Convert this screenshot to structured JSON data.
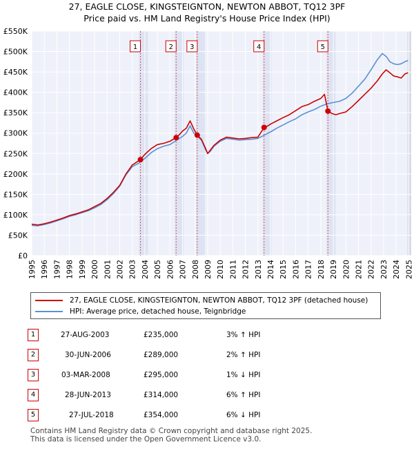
{
  "header": {
    "title": "27, EAGLE CLOSE, KINGSTEIGNTON, NEWTON ABBOT, TQ12 3PF",
    "subtitle": "Price paid vs. HM Land Registry's House Price Index (HPI)"
  },
  "chart_data": {
    "type": "line",
    "title": "27, EAGLE CLOSE, KINGSTEIGNTON, NEWTON ABBOT, TQ12 3PF",
    "subtitle": "Price paid vs. HM Land Registry's House Price Index (HPI)",
    "xlim": [
      1995,
      2025.2
    ],
    "ylim": [
      0,
      550000
    ],
    "yticks": [
      0,
      50000,
      100000,
      150000,
      200000,
      250000,
      300000,
      350000,
      400000,
      450000,
      500000,
      550000
    ],
    "ytick_labels": [
      "£0",
      "£50K",
      "£100K",
      "£150K",
      "£200K",
      "£250K",
      "£300K",
      "£350K",
      "£400K",
      "£450K",
      "£500K",
      "£550K"
    ],
    "xticks": [
      1995,
      1996,
      1997,
      1998,
      1999,
      2000,
      2001,
      2002,
      2003,
      2004,
      2005,
      2006,
      2007,
      2008,
      2009,
      2010,
      2011,
      2012,
      2013,
      2014,
      2015,
      2016,
      2017,
      2018,
      2019,
      2020,
      2021,
      2022,
      2023,
      2024,
      2025
    ],
    "xtick_labels": [
      "1995",
      "1996",
      "1997",
      "1998",
      "1999",
      "2000",
      "2001",
      "2002",
      "2003",
      "2004",
      "2005",
      "2006",
      "2007",
      "2008",
      "2009",
      "2010",
      "2011",
      "2012",
      "2013",
      "2014",
      "2015",
      "2016",
      "2017",
      "2018",
      "2019",
      "2020",
      "2021",
      "2022",
      "2023",
      "2024",
      "2025"
    ],
    "grid": true,
    "shaded_range": [
      2024.9,
      2025.2
    ],
    "series": [
      {
        "name": "27, EAGLE CLOSE, KINGSTEIGNTON, NEWTON ABBOT, TQ12 3PF (detached house)",
        "color": "#cc0000",
        "x": [
          1995.0,
          1995.5,
          1996.0,
          1996.5,
          1997.0,
          1997.5,
          1998.0,
          1998.5,
          1999.0,
          1999.5,
          2000.0,
          2000.5,
          2001.0,
          2001.5,
          2002.0,
          2002.5,
          2003.0,
          2003.5,
          2003.65,
          2004.0,
          2004.5,
          2005.0,
          2005.5,
          2006.0,
          2006.49,
          2006.8,
          2007.0,
          2007.3,
          2007.6,
          2007.9,
          2008.17,
          2008.5,
          2008.8,
          2009.0,
          2009.2,
          2009.5,
          2010.0,
          2010.5,
          2011.0,
          2011.5,
          2012.0,
          2012.5,
          2013.0,
          2013.49,
          2013.8,
          2014.0,
          2014.5,
          2015.0,
          2015.5,
          2016.0,
          2016.5,
          2017.0,
          2017.5,
          2018.0,
          2018.3,
          2018.57,
          2018.9,
          2019.2,
          2019.5,
          2020.0,
          2020.5,
          2021.0,
          2021.5,
          2022.0,
          2022.5,
          2022.9,
          2023.2,
          2023.5,
          2023.8,
          2024.1,
          2024.4,
          2024.7,
          2024.95
        ],
        "values": [
          77000,
          75000,
          78000,
          82000,
          87000,
          92000,
          98000,
          102000,
          107000,
          112000,
          120000,
          128000,
          140000,
          155000,
          172000,
          200000,
          222000,
          232000,
          235000,
          248000,
          262000,
          272000,
          275000,
          280000,
          289000,
          298000,
          305000,
          312000,
          330000,
          310000,
          295000,
          285000,
          265000,
          250000,
          258000,
          270000,
          283000,
          290000,
          288000,
          286000,
          287000,
          289000,
          290000,
          314000,
          318000,
          322000,
          330000,
          338000,
          345000,
          355000,
          365000,
          370000,
          378000,
          385000,
          395000,
          354000,
          348000,
          345000,
          348000,
          352000,
          365000,
          380000,
          395000,
          410000,
          428000,
          445000,
          455000,
          448000,
          440000,
          438000,
          435000,
          445000,
          448000
        ]
      },
      {
        "name": "HPI: Average price, detached house, Teignbridge",
        "color": "#5b8fd6",
        "x": [
          1995.0,
          1995.5,
          1996.0,
          1996.5,
          1997.0,
          1997.5,
          1998.0,
          1998.5,
          1999.0,
          1999.5,
          2000.0,
          2000.5,
          2001.0,
          2001.5,
          2002.0,
          2002.5,
          2003.0,
          2003.5,
          2004.0,
          2004.5,
          2005.0,
          2005.5,
          2006.0,
          2006.5,
          2007.0,
          2007.3,
          2007.6,
          2007.9,
          2008.2,
          2008.5,
          2008.8,
          2009.0,
          2009.2,
          2009.5,
          2010.0,
          2010.5,
          2011.0,
          2011.5,
          2012.0,
          2012.5,
          2013.0,
          2013.5,
          2014.0,
          2014.5,
          2015.0,
          2015.5,
          2016.0,
          2016.5,
          2017.0,
          2017.5,
          2018.0,
          2018.5,
          2019.0,
          2019.5,
          2020.0,
          2020.5,
          2021.0,
          2021.5,
          2022.0,
          2022.5,
          2022.9,
          2023.2,
          2023.5,
          2023.8,
          2024.1,
          2024.4,
          2024.7,
          2024.95
        ],
        "values": [
          74000,
          73000,
          76000,
          80000,
          85000,
          90000,
          96000,
          100000,
          105000,
          110000,
          117000,
          125000,
          137000,
          152000,
          170000,
          198000,
          218000,
          226000,
          238000,
          252000,
          262000,
          268000,
          272000,
          282000,
          292000,
          300000,
          318000,
          300000,
          292000,
          283000,
          262000,
          250000,
          255000,
          268000,
          280000,
          287000,
          285000,
          283000,
          284000,
          285000,
          287000,
          295000,
          303000,
          312000,
          320000,
          328000,
          335000,
          345000,
          352000,
          358000,
          366000,
          372000,
          375000,
          378000,
          385000,
          398000,
          415000,
          432000,
          455000,
          480000,
          495000,
          488000,
          475000,
          470000,
          468000,
          470000,
          475000,
          478000
        ]
      }
    ],
    "sales": [
      {
        "label": "1",
        "x": 2003.65,
        "price": 235000
      },
      {
        "label": "2",
        "x": 2006.49,
        "price": 289000
      },
      {
        "label": "3",
        "x": 2008.17,
        "price": 295000
      },
      {
        "label": "4",
        "x": 2013.49,
        "price": 314000
      },
      {
        "label": "5",
        "x": 2018.57,
        "price": 354000
      }
    ]
  },
  "legend": [
    {
      "label": "27, EAGLE CLOSE, KINGSTEIGNTON, NEWTON ABBOT, TQ12 3PF (detached house)",
      "color": "#cc0000"
    },
    {
      "label": "HPI: Average price, detached house, Teignbridge",
      "color": "#5b8fd6"
    }
  ],
  "transactions": [
    {
      "num": "1",
      "date": "27-AUG-2003",
      "price": "£235,000",
      "hpi": "3% ↑ HPI"
    },
    {
      "num": "2",
      "date": "30-JUN-2006",
      "price": "£289,000",
      "hpi": "2% ↑ HPI"
    },
    {
      "num": "3",
      "date": "03-MAR-2008",
      "price": "£295,000",
      "hpi": "1% ↓ HPI"
    },
    {
      "num": "4",
      "date": "28-JUN-2013",
      "price": "£314,000",
      "hpi": "6% ↑ HPI"
    },
    {
      "num": "5",
      "date": "27-JUL-2018",
      "price": "£354,000",
      "hpi": "6% ↓ HPI"
    }
  ],
  "footer": {
    "line1": "Contains HM Land Registry data © Crown copyright and database right 2025.",
    "line2": "This data is licensed under the Open Government Licence v3.0."
  }
}
